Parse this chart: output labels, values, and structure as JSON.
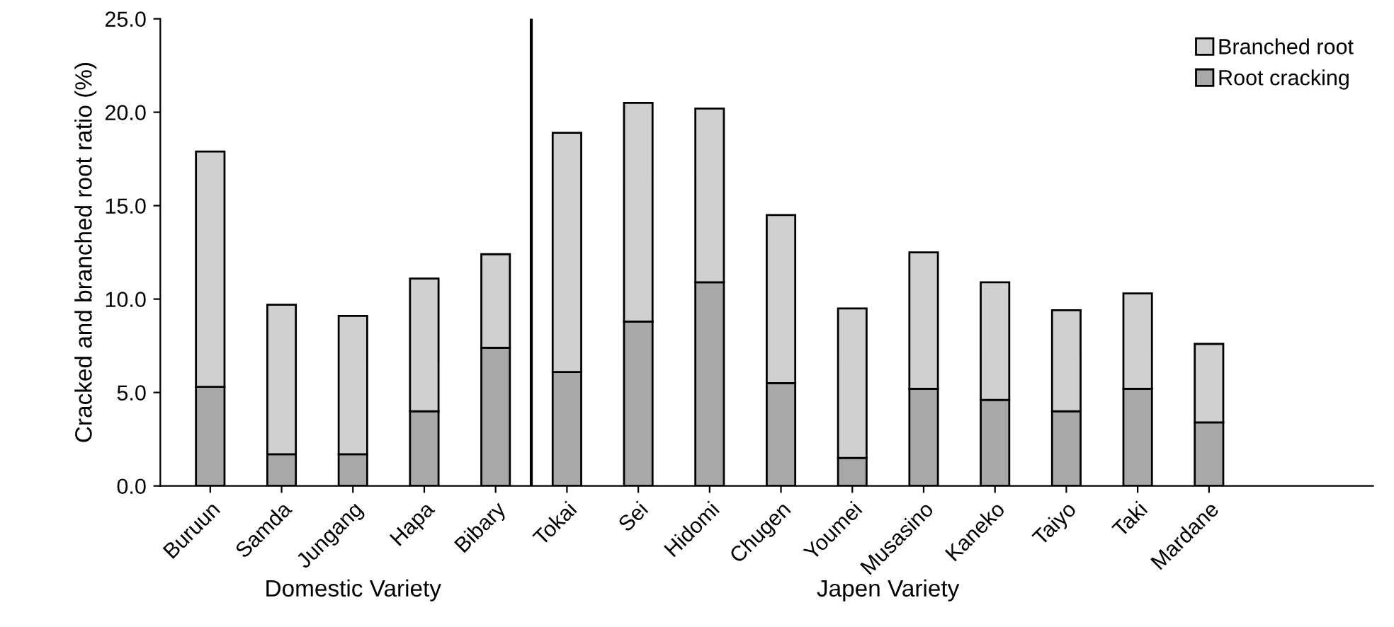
{
  "chart_data": {
    "type": "bar",
    "stacked": true,
    "ylabel": "Cracked and branched root ratio (%)",
    "categories": [
      "Buruun",
      "Samda",
      "Jungang",
      "Hapa",
      "Bibary",
      "Tokai",
      "Sei",
      "Hidomi",
      "Chugen",
      "Youmei",
      "Musasino",
      "Kaneko",
      "Taiyo",
      "Taki",
      "Mardane"
    ],
    "series": [
      {
        "name": "Root cracking",
        "color": "#a8a8a8",
        "values": [
          5.3,
          1.7,
          1.7,
          4.0,
          7.4,
          6.1,
          8.8,
          10.9,
          5.5,
          1.5,
          5.2,
          4.6,
          4.0,
          5.2,
          3.4
        ]
      },
      {
        "name": "Branched root",
        "color": "#d0d0d0",
        "values": [
          12.6,
          8.0,
          7.4,
          7.1,
          5.0,
          12.8,
          11.7,
          9.3,
          9.0,
          8.0,
          7.3,
          6.3,
          5.4,
          5.1,
          4.2
        ]
      }
    ],
    "ylim": [
      0,
      25
    ],
    "yticks": [
      {
        "value": 0,
        "label": "0.0"
      },
      {
        "value": 5,
        "label": "5.0"
      },
      {
        "value": 10,
        "label": "10.0"
      },
      {
        "value": 15,
        "label": "15.0"
      },
      {
        "value": 20,
        "label": "20.0"
      },
      {
        "value": 25,
        "label": "25.0"
      }
    ],
    "annotations": [
      "Domestic Variety",
      "Japen Variety"
    ],
    "legend": "top right",
    "grid": false
  }
}
